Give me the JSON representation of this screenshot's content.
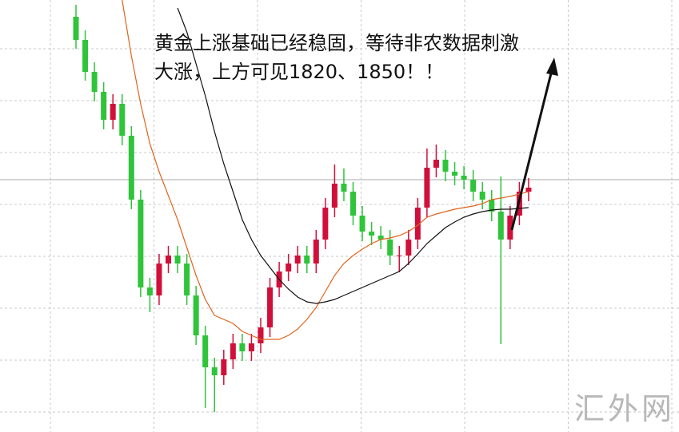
{
  "chart_data": {
    "type": "candlestick",
    "annotation": [
      "黄金上涨基础已经稳固，等待非农数据刺激",
      "大涨，上方可见1820、1850！！"
    ],
    "watermark": "汇外网",
    "ylim": [
      0,
      541
    ],
    "up_color": "#d0103a",
    "down_color": "#2fc43a",
    "open": [
      520,
      491,
      451,
      426,
      391,
      411,
      371,
      291,
      181,
      171,
      211,
      221,
      211,
      171,
      121,
      81,
      71,
      91,
      111,
      101,
      111,
      131,
      181,
      201,
      211,
      221,
      211,
      241,
      281,
      311,
      301,
      271,
      251,
      246,
      241,
      221,
      221,
      241,
      281,
      331,
      341,
      326,
      321,
      316,
      301,
      291,
      276,
      241,
      271,
      301
    ],
    "high": [
      535,
      503,
      463,
      438,
      423,
      423,
      383,
      303,
      193,
      223,
      233,
      233,
      223,
      183,
      133,
      93,
      103,
      123,
      123,
      123,
      143,
      193,
      213,
      223,
      233,
      233,
      253,
      293,
      335,
      330,
      313,
      283,
      263,
      258,
      253,
      233,
      253,
      293,
      355,
      360,
      353,
      338,
      333,
      328,
      313,
      303,
      320,
      283,
      313,
      318
    ],
    "low": [
      480,
      440,
      414,
      379,
      379,
      359,
      279,
      169,
      150,
      159,
      199,
      199,
      159,
      109,
      30,
      25,
      59,
      79,
      89,
      89,
      99,
      119,
      169,
      189,
      199,
      199,
      199,
      229,
      269,
      289,
      259,
      239,
      234,
      229,
      209,
      200,
      209,
      229,
      269,
      319,
      314,
      309,
      304,
      289,
      279,
      264,
      110,
      229,
      259,
      289
    ],
    "close": [
      491,
      451,
      426,
      391,
      411,
      371,
      291,
      181,
      171,
      211,
      221,
      211,
      171,
      121,
      81,
      71,
      91,
      111,
      101,
      111,
      131,
      181,
      201,
      211,
      221,
      211,
      241,
      281,
      311,
      301,
      271,
      251,
      246,
      241,
      221,
      221,
      241,
      281,
      331,
      341,
      326,
      321,
      316,
      301,
      291,
      276,
      241,
      271,
      301,
      306
    ],
    "series": [
      {
        "color": "#e0641e",
        "values": [
          null,
          null,
          null,
          null,
          null,
          541,
          471,
          411,
          361,
          326,
          296,
          266,
          231,
          196,
          166,
          146,
          141,
          136,
          126,
          121,
          116,
          116,
          116,
          121,
          129,
          141,
          156,
          176,
          196,
          211,
          221,
          229,
          236,
          241,
          243,
          246,
          251,
          259,
          269,
          273,
          276,
          279,
          281,
          283,
          286,
          291,
          293,
          295,
          298,
          301
        ]
      },
      {
        "color": "#111111",
        "values": [
          null,
          null,
          null,
          null,
          null,
          null,
          null,
          null,
          null,
          null,
          null,
          531,
          501,
          461,
          421,
          376,
          336,
          301,
          266,
          241,
          221,
          206,
          191,
          179,
          169,
          163,
          161,
          163,
          166,
          171,
          176,
          181,
          186,
          191,
          196,
          201,
          211,
          223,
          236,
          246,
          256,
          263,
          269,
          273,
          276,
          278,
          279,
          279,
          280,
          281
        ]
      }
    ]
  }
}
